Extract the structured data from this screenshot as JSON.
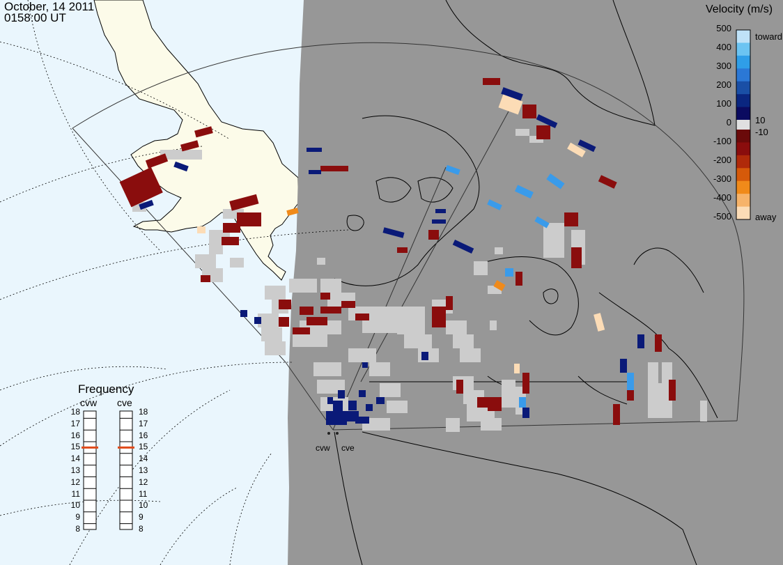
{
  "header": {
    "date": "October, 14 2011",
    "time": "0158:00 UT"
  },
  "colors": {
    "ocean": "#eaf6fd",
    "land_west": "#fcfbe9",
    "nightside": "#979797",
    "ground_scatter": "#cccccc"
  },
  "velocity_scale": {
    "title": "Velocity (m/s)",
    "ticks": [
      "500",
      "400",
      "300",
      "200",
      "100",
      "0",
      "-100",
      "-200",
      "-300",
      "-400",
      "-500"
    ],
    "inner_ticks": [
      "10",
      "-10"
    ],
    "end_labels": {
      "top": "toward",
      "bottom": "away"
    },
    "colors_top_to_bottom": [
      "#bfe2f8",
      "#6cc4f2",
      "#2f9ee8",
      "#2b78d6",
      "#1a4fa6",
      "#0a2680",
      "#0b0b60",
      "#6a0a0a",
      "#8a0d0d",
      "#b02a0a",
      "#d65a0a",
      "#f08a1a",
      "#f6b36a",
      "#fcdcb6"
    ]
  },
  "frequency_panel": {
    "title": "Frequency",
    "radars": [
      {
        "name": "cvw",
        "frequency_mhz": 15
      },
      {
        "name": "cve",
        "frequency_mhz": 15
      }
    ],
    "ticks": [
      "18",
      "17",
      "16",
      "15",
      "14",
      "13",
      "12",
      "11",
      "10",
      "9",
      "8"
    ]
  },
  "sites": [
    {
      "name": "cvw"
    },
    {
      "name": "cve"
    }
  ]
}
